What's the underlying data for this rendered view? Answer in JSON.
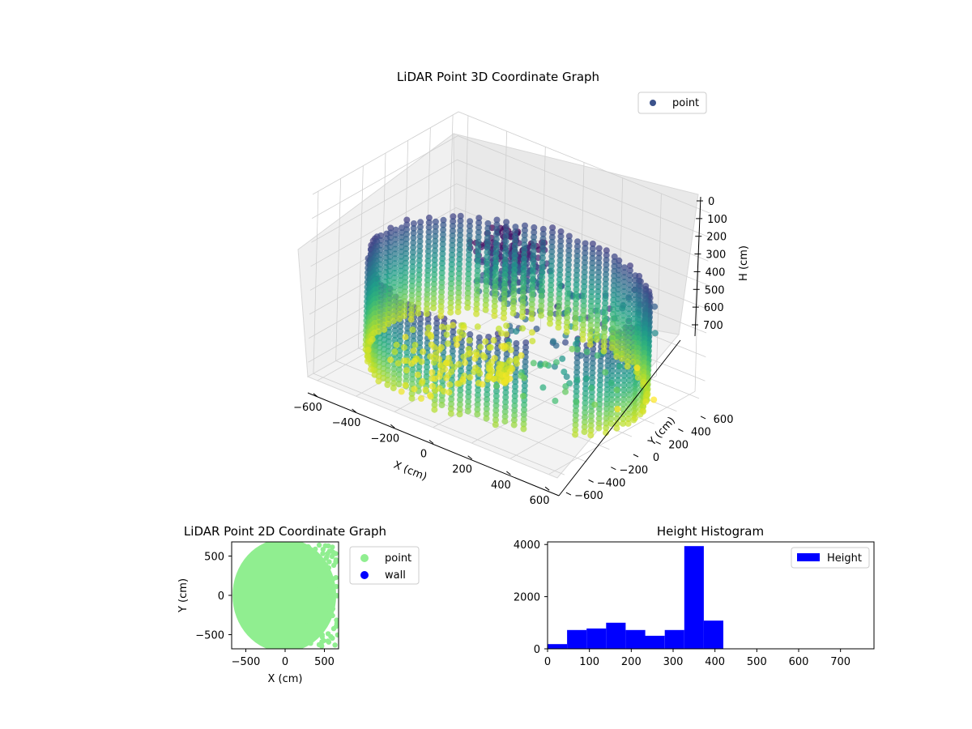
{
  "chart_data": [
    {
      "type": "scatter",
      "projection": "3d",
      "title": "LiDAR Point 3D Coordinate Graph",
      "xlabel": "X (cm)",
      "ylabel": "Y (cm)",
      "zlabel": "H (cm)",
      "x_ticks": [
        "−600",
        "−400",
        "−200",
        "0",
        "200",
        "400",
        "600"
      ],
      "y_ticks": [
        "−600",
        "−400",
        "−200",
        "0",
        "200",
        "400",
        "600"
      ],
      "z_ticks": [
        "0",
        "100",
        "200",
        "300",
        "400",
        "500",
        "600",
        "700"
      ],
      "xlim": [
        -650,
        650
      ],
      "ylim": [
        -650,
        650
      ],
      "zlim": [
        0,
        760
      ],
      "z_inverted": true,
      "grid": true,
      "colormap": "viridis",
      "legend": {
        "placement": "upper-right",
        "entries": [
          {
            "label": "point",
            "color": "#3b528b"
          }
        ]
      },
      "series": [
        {
          "name": "point",
          "description": "circular wall of points at radius ~620 cm spanning heights ~300–740 cm, with a dense cluster near the center-back and scattered floor points",
          "outliers": [
            {
              "x": 300,
              "y": 650,
              "h": 760
            },
            {
              "x": 520,
              "y": 420,
              "h": 760
            },
            {
              "x": 460,
              "y": 200,
              "h": 760
            }
          ]
        }
      ]
    },
    {
      "type": "scatter",
      "title": "LiDAR Point 2D Coordinate Graph",
      "xlabel": "X (cm)",
      "ylabel": "Y (cm)",
      "x_ticks": [
        "−500",
        "0",
        "500"
      ],
      "y_ticks": [
        "−500",
        "0",
        "500"
      ],
      "xlim": [
        -680,
        680
      ],
      "ylim": [
        -680,
        680
      ],
      "grid": false,
      "legend": {
        "placement": "outside-right",
        "entries": [
          {
            "label": "point",
            "color": "#90ee90"
          },
          {
            "label": "wall",
            "color": "#0000ff"
          }
        ]
      },
      "series": [
        {
          "name": "point",
          "color": "#90ee90",
          "shape": "filled disk of radius ~630 cm, ragged right edge"
        },
        {
          "name": "wall",
          "color": "#0000ff",
          "values": []
        }
      ]
    },
    {
      "type": "bar",
      "subtype": "histogram",
      "title": "Height Histogram",
      "xlabel": "",
      "ylabel": "",
      "x_ticks": [
        "0",
        "100",
        "200",
        "300",
        "400",
        "500",
        "600",
        "700"
      ],
      "y_ticks": [
        "0",
        "2000",
        "4000"
      ],
      "xlim": [
        0,
        780
      ],
      "ylim": [
        0,
        4100
      ],
      "bin_width": 46.7,
      "bin_edges": [
        0,
        46.7,
        93.3,
        140,
        186.7,
        233.3,
        280,
        326.7,
        373.3,
        420
      ],
      "values": [
        180,
        720,
        780,
        1000,
        720,
        500,
        720,
        3940,
        1080
      ],
      "legend": {
        "placement": "top-right",
        "entries": [
          {
            "label": "Height",
            "color": "#0000ff"
          }
        ]
      },
      "series": [
        {
          "name": "Height",
          "color": "#0000ff"
        }
      ]
    }
  ]
}
